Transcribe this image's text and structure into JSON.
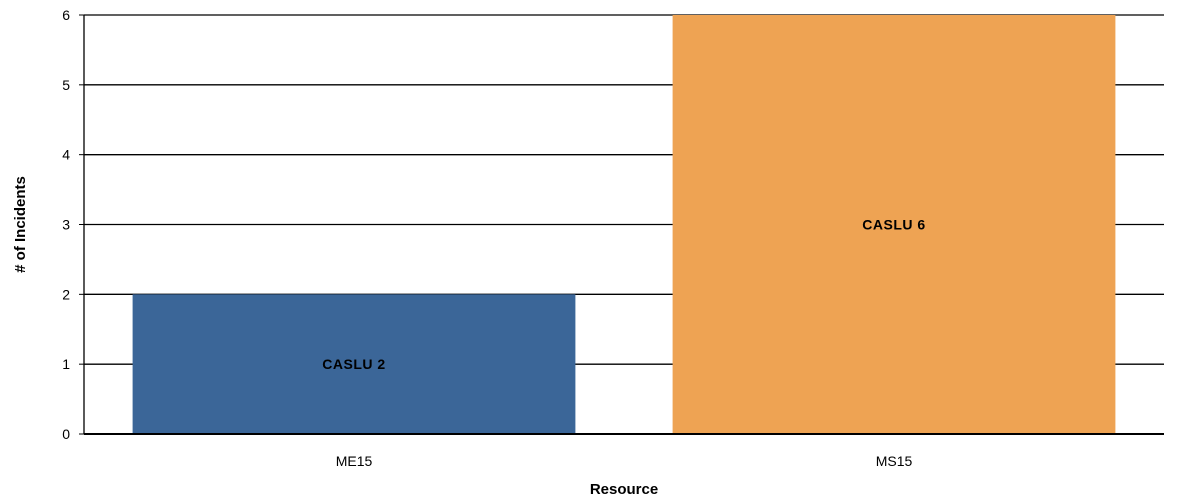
{
  "chart_data": {
    "type": "bar",
    "categories": [
      "ME15",
      "MS15"
    ],
    "values": [
      2,
      6
    ],
    "bar_labels": [
      "CASLU 2",
      "CASLU 6"
    ],
    "colors": [
      "#3b6698",
      "#eea353"
    ],
    "xlabel": "Resource",
    "ylabel": "# of Incidents",
    "ylim": [
      0,
      6
    ],
    "yticks": [
      "0",
      "1",
      "2",
      "3",
      "4",
      "5",
      "6"
    ],
    "grid": true
  }
}
